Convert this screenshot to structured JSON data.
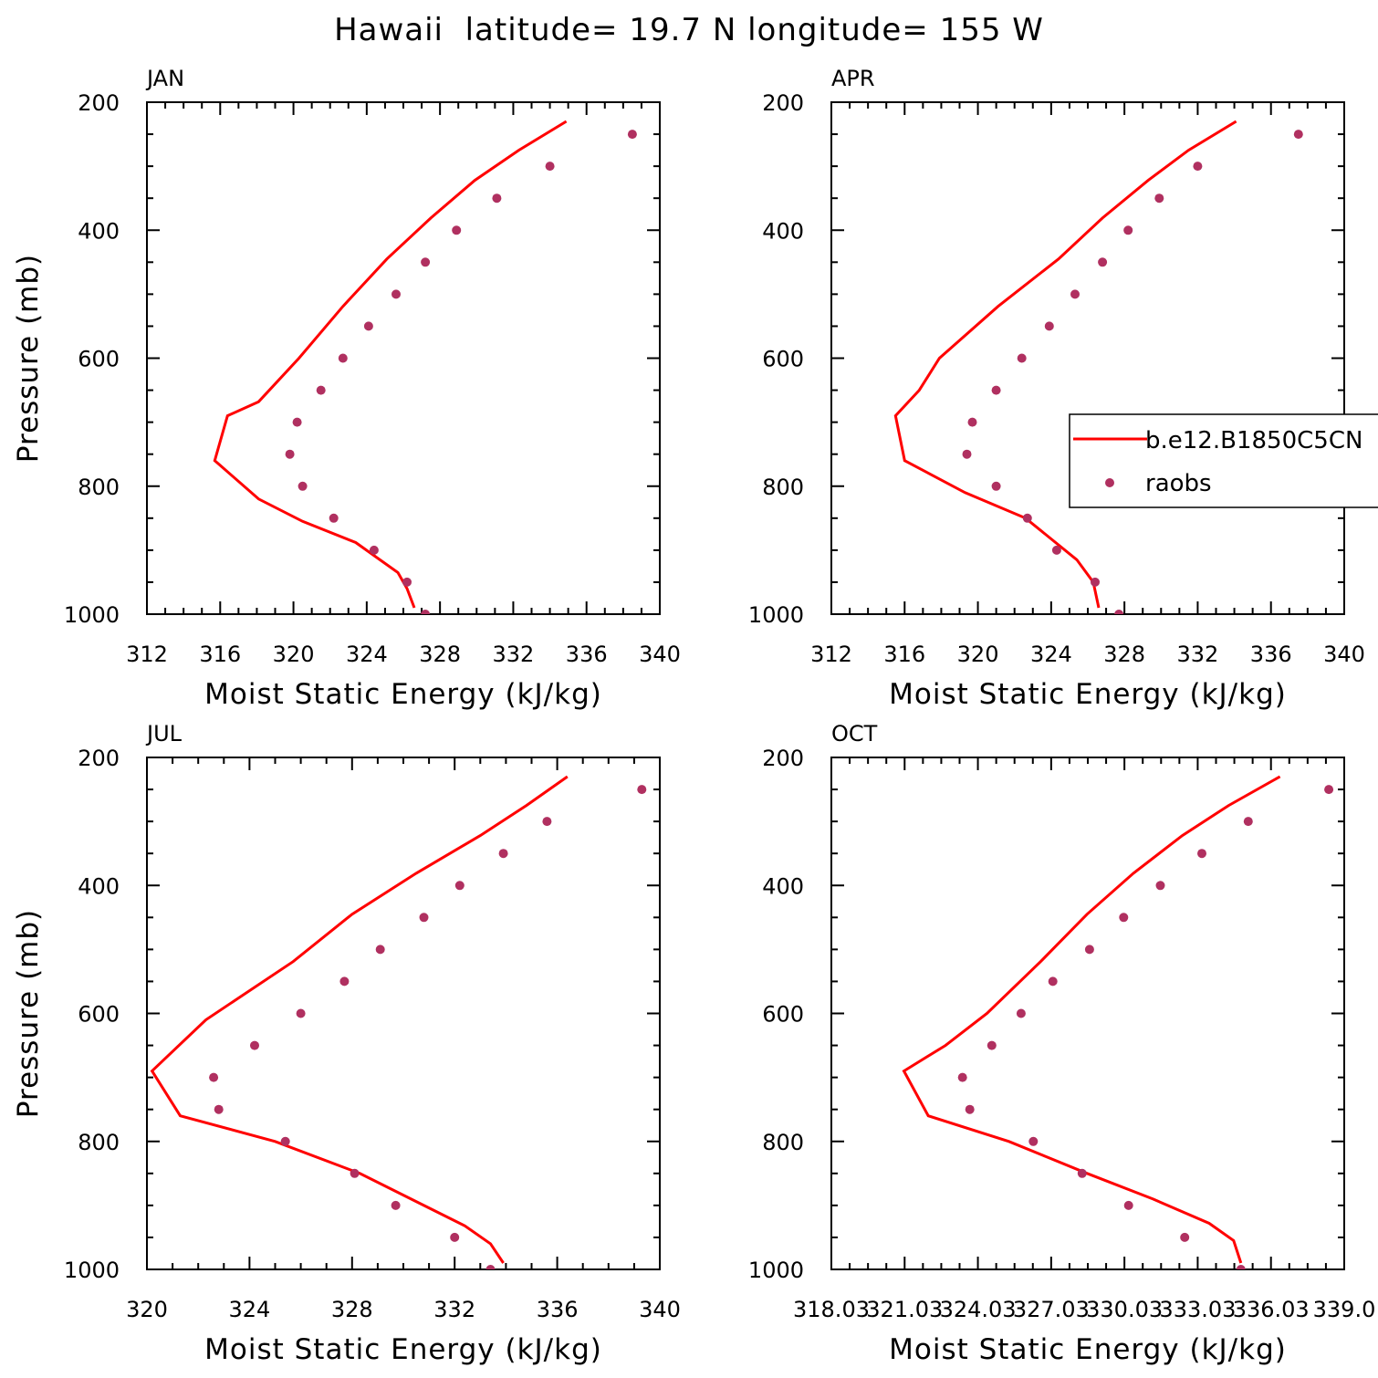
{
  "figure_title": "Hawaii  latitude= 19.7 N longitude= 155 W",
  "legend": {
    "model_label": "b.e12.B1850C5CN",
    "obs_label": "raobs"
  },
  "colors": {
    "model_line": "#ff0000",
    "obs_marker": "#b03060",
    "axis": "#000000"
  },
  "chart_data": [
    {
      "type": "line",
      "title": "JAN",
      "xlabel": "Moist Static Energy (kJ/kg)",
      "ylabel": "Pressure (mb)",
      "xlim": [
        312,
        340
      ],
      "ylim": [
        1000,
        200
      ],
      "xticks": [
        312,
        316,
        320,
        324,
        328,
        332,
        336,
        340
      ],
      "xtick_labels": [
        "312",
        "316",
        "320",
        "324",
        "328",
        "332",
        "336",
        "340"
      ],
      "yticks": [
        200,
        400,
        600,
        800,
        1000
      ],
      "ytick_labels": [
        "200",
        "400",
        "600",
        "800",
        "1000"
      ],
      "series": [
        {
          "name": "b.e12.B1850C5CN",
          "kind": "line",
          "points": [
            [
              334.9,
              230
            ],
            [
              332.3,
              275
            ],
            [
              329.9,
              322
            ],
            [
              327.5,
              381
            ],
            [
              325.1,
              445
            ],
            [
              322.7,
              519
            ],
            [
              320.3,
              600
            ],
            [
              318.1,
              668
            ],
            [
              316.4,
              690
            ],
            [
              315.7,
              760
            ],
            [
              318.1,
              820
            ],
            [
              320.5,
              855
            ],
            [
              323.4,
              888
            ],
            [
              325.7,
              935
            ],
            [
              326.2,
              960
            ],
            [
              326.6,
              990
            ]
          ]
        },
        {
          "name": "raobs",
          "kind": "scatter",
          "points": [
            [
              338.5,
              250
            ],
            [
              334.0,
              300
            ],
            [
              331.1,
              350
            ],
            [
              328.9,
              400
            ],
            [
              327.2,
              450
            ],
            [
              325.6,
              500
            ],
            [
              324.1,
              550
            ],
            [
              322.7,
              600
            ],
            [
              321.5,
              650
            ],
            [
              320.2,
              700
            ],
            [
              319.8,
              750
            ],
            [
              320.5,
              800
            ],
            [
              322.2,
              850
            ],
            [
              324.4,
              900
            ],
            [
              326.2,
              950
            ],
            [
              327.2,
              1000
            ]
          ]
        }
      ]
    },
    {
      "type": "line",
      "title": "APR",
      "xlabel": "Moist Static Energy (kJ/kg)",
      "ylabel": "",
      "xlim": [
        312,
        340
      ],
      "ylim": [
        1000,
        200
      ],
      "xticks": [
        312,
        316,
        320,
        324,
        328,
        332,
        336,
        340
      ],
      "xtick_labels": [
        "312",
        "316",
        "320",
        "324",
        "328",
        "332",
        "336",
        "340"
      ],
      "yticks": [
        200,
        400,
        600,
        800,
        1000
      ],
      "ytick_labels": [
        "200",
        "400",
        "600",
        "800",
        "1000"
      ],
      "series": [
        {
          "name": "b.e12.B1850C5CN",
          "kind": "line",
          "points": [
            [
              334.1,
              230
            ],
            [
              331.5,
              275
            ],
            [
              329.3,
              322
            ],
            [
              326.8,
              381
            ],
            [
              324.4,
              445
            ],
            [
              321.1,
              519
            ],
            [
              317.9,
              600
            ],
            [
              316.8,
              650
            ],
            [
              315.5,
              690
            ],
            [
              316.0,
              760
            ],
            [
              319.3,
              810
            ],
            [
              322.6,
              850
            ],
            [
              325.4,
              915
            ],
            [
              326.3,
              950
            ],
            [
              326.6,
              990
            ]
          ]
        },
        {
          "name": "raobs",
          "kind": "scatter",
          "points": [
            [
              337.5,
              250
            ],
            [
              332.0,
              300
            ],
            [
              329.9,
              350
            ],
            [
              328.2,
              400
            ],
            [
              326.8,
              450
            ],
            [
              325.3,
              500
            ],
            [
              323.9,
              550
            ],
            [
              322.4,
              600
            ],
            [
              321.0,
              650
            ],
            [
              319.7,
              700
            ],
            [
              319.4,
              750
            ],
            [
              321.0,
              800
            ],
            [
              322.7,
              850
            ],
            [
              324.3,
              900
            ],
            [
              326.4,
              950
            ],
            [
              327.7,
              1000
            ]
          ]
        }
      ]
    },
    {
      "type": "line",
      "title": "JUL",
      "xlabel": "Moist Static Energy (kJ/kg)",
      "ylabel": "Pressure (mb)",
      "xlim": [
        320,
        340
      ],
      "ylim": [
        1000,
        200
      ],
      "xticks": [
        320,
        324,
        328,
        332,
        336,
        340
      ],
      "xtick_labels": [
        "320",
        "324",
        "328",
        "332",
        "336",
        "340"
      ],
      "yticks": [
        200,
        400,
        600,
        800,
        1000
      ],
      "ytick_labels": [
        "200",
        "400",
        "600",
        "800",
        "1000"
      ],
      "series": [
        {
          "name": "b.e12.B1850C5CN",
          "kind": "line",
          "points": [
            [
              336.4,
              230
            ],
            [
              334.8,
              275
            ],
            [
              333.0,
              322
            ],
            [
              330.5,
              381
            ],
            [
              328.0,
              445
            ],
            [
              325.7,
              519
            ],
            [
              322.3,
              610
            ],
            [
              320.2,
              690
            ],
            [
              321.3,
              760
            ],
            [
              325.0,
              800
            ],
            [
              328.3,
              850
            ],
            [
              330.8,
              900
            ],
            [
              332.4,
              932
            ],
            [
              333.4,
              960
            ],
            [
              333.9,
              990
            ]
          ]
        },
        {
          "name": "raobs",
          "kind": "scatter",
          "points": [
            [
              339.3,
              250
            ],
            [
              335.6,
              300
            ],
            [
              333.9,
              350
            ],
            [
              332.2,
              400
            ],
            [
              330.8,
              450
            ],
            [
              329.1,
              500
            ],
            [
              327.7,
              550
            ],
            [
              326.0,
              600
            ],
            [
              324.2,
              650
            ],
            [
              322.6,
              700
            ],
            [
              322.8,
              750
            ],
            [
              325.4,
              800
            ],
            [
              328.1,
              850
            ],
            [
              329.7,
              900
            ],
            [
              332.0,
              950
            ],
            [
              333.4,
              1000
            ]
          ]
        }
      ]
    },
    {
      "type": "line",
      "title": "OCT",
      "xlabel": "Moist Static Energy (kJ/kg)",
      "ylabel": "",
      "xlim": [
        318.03,
        339.03
      ],
      "ylim": [
        1000,
        200
      ],
      "xticks": [
        318.03,
        321.03,
        324.03,
        327.03,
        330.03,
        333.03,
        336.03,
        339.03
      ],
      "xtick_labels": [
        "318.03",
        "321.03",
        "324.03",
        "327.03",
        "330.03",
        "333.03",
        "336.03",
        "339.0"
      ],
      "yticks": [
        200,
        400,
        600,
        800,
        1000
      ],
      "ytick_labels": [
        "200",
        "400",
        "600",
        "800",
        "1000"
      ],
      "series": [
        {
          "name": "b.e12.B1850C5CN",
          "kind": "line",
          "points": [
            [
              336.4,
              230
            ],
            [
              334.3,
              275
            ],
            [
              332.4,
              322
            ],
            [
              330.4,
              381
            ],
            [
              328.5,
              445
            ],
            [
              326.6,
              519
            ],
            [
              324.4,
              600
            ],
            [
              322.7,
              650
            ],
            [
              321.0,
              690
            ],
            [
              322.0,
              760
            ],
            [
              325.3,
              800
            ],
            [
              328.5,
              850
            ],
            [
              331.2,
              890
            ],
            [
              333.5,
              928
            ],
            [
              334.5,
              955
            ],
            [
              334.8,
              990
            ]
          ]
        },
        {
          "name": "raobs",
          "kind": "scatter",
          "points": [
            [
              338.4,
              250
            ],
            [
              335.1,
              300
            ],
            [
              333.2,
              350
            ],
            [
              331.5,
              400
            ],
            [
              330.0,
              450
            ],
            [
              328.6,
              500
            ],
            [
              327.1,
              550
            ],
            [
              325.8,
              600
            ],
            [
              324.6,
              650
            ],
            [
              323.4,
              700
            ],
            [
              323.7,
              750
            ],
            [
              326.3,
              800
            ],
            [
              328.3,
              850
            ],
            [
              330.2,
              900
            ],
            [
              332.5,
              950
            ],
            [
              334.8,
              1000
            ]
          ]
        }
      ]
    }
  ]
}
